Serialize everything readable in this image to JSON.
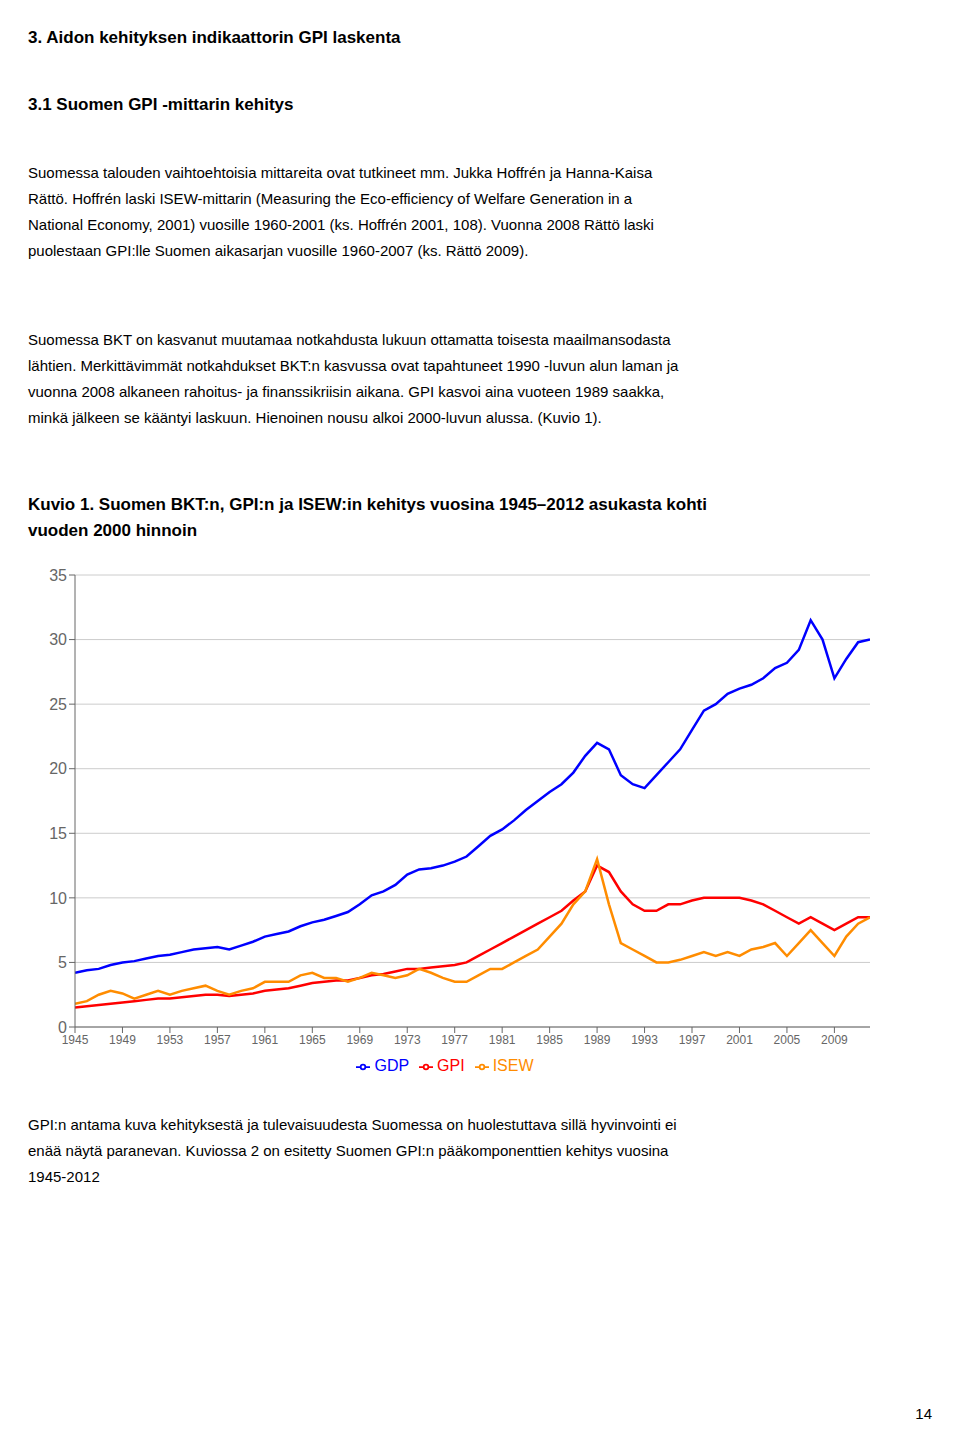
{
  "chart_data": {
    "type": "line",
    "title": "3. Aidon kehityksen indikaattorin GPI laskenta",
    "subtitle": "3.1 Suomen GPI -mittarin kehitys",
    "annotations": [
      [
        "Suomessa talouden vaihtoehtoisia mittareita ovat tutkineet mm. Jukka Hoffrén ja Hanna-Kaisa",
        "Rättö. Hoffrén laski ISEW-mittarin (Measuring the Eco-efficiency of Welfare Generation in a",
        "National Economy, 2001) vuosille 1960-2001 (ks. Hoffrén 2001, 108). Vuonna 2008 Rättö laski",
        "puolestaan GPI:lle Suomen aikasarjan vuosille 1960-2007 (ks. Rättö 2009)."
      ],
      [
        "Suomessa BKT on kasvanut muutamaa notkahdusta lukuun ottamatta toisesta maailmansodasta",
        "lähtien. Merkittävimmät notkahdukset BKT:n kasvussa ovat tapahtuneet 1990 -luvun alun laman ja",
        "vuonna 2008 alkaneen rahoitus- ja finanssikriisin aikana. GPI kasvoi aina vuoteen 1989 saakka,",
        "minkä jälkeen se kääntyi laskuun. Hienoinen nousu alkoi 2000-luvun alussa. (Kuvio 1)."
      ],
      [
        "Kuvio 1. Suomen BKT:n, GPI:n ja ISEW:in kehitys vuosina 1945–2012 asukasta kohti",
        "vuoden 2000 hinnoin"
      ],
      [
        "GPI:n antama kuva kehityksestä ja tulevaisuudesta Suomessa on huolestuttava sillä hyvinvointi ei",
        "enää näytä paranevan. Kuviossa 2 on esitetty Suomen GPI:n pääkomponenttien kehitys vuosina",
        "1945-2012"
      ],
      [
        "14"
      ]
    ],
    "x": [
      1945,
      1946,
      1947,
      1948,
      1949,
      1950,
      1951,
      1952,
      1953,
      1954,
      1955,
      1956,
      1957,
      1958,
      1959,
      1960,
      1961,
      1962,
      1963,
      1964,
      1965,
      1966,
      1967,
      1968,
      1969,
      1970,
      1971,
      1972,
      1973,
      1974,
      1975,
      1976,
      1977,
      1978,
      1979,
      1980,
      1981,
      1982,
      1983,
      1984,
      1985,
      1986,
      1987,
      1988,
      1989,
      1990,
      1991,
      1992,
      1993,
      1994,
      1995,
      1996,
      1997,
      1998,
      1999,
      2000,
      2001,
      2002,
      2003,
      2004,
      2005,
      2006,
      2007,
      2008,
      2009,
      2010,
      2011,
      2012
    ],
    "series": [
      {
        "name": "GDP",
        "color": "#0000FF",
        "values": [
          4.2,
          4.4,
          4.5,
          4.8,
          5.0,
          5.1,
          5.3,
          5.5,
          5.6,
          5.8,
          6.0,
          6.1,
          6.2,
          6.0,
          6.3,
          6.6,
          7.0,
          7.2,
          7.4,
          7.8,
          8.1,
          8.3,
          8.6,
          8.9,
          9.5,
          10.2,
          10.5,
          11.0,
          11.8,
          12.2,
          12.3,
          12.5,
          12.8,
          13.2,
          14.0,
          14.8,
          15.3,
          16.0,
          16.8,
          17.5,
          18.2,
          18.8,
          19.7,
          21.0,
          22.0,
          21.5,
          19.5,
          18.8,
          18.5,
          19.5,
          20.5,
          21.5,
          23.0,
          24.5,
          25.0,
          25.8,
          26.2,
          26.5,
          27.0,
          27.8,
          28.2,
          29.2,
          31.5,
          30.0,
          27.0,
          28.5,
          29.8,
          30.0
        ]
      },
      {
        "name": "GPI",
        "color": "#FF0000",
        "values": [
          1.5,
          1.6,
          1.7,
          1.8,
          1.9,
          2.0,
          2.1,
          2.2,
          2.2,
          2.3,
          2.4,
          2.5,
          2.5,
          2.4,
          2.5,
          2.6,
          2.8,
          2.9,
          3.0,
          3.2,
          3.4,
          3.5,
          3.6,
          3.6,
          3.8,
          4.0,
          4.1,
          4.3,
          4.5,
          4.5,
          4.6,
          4.7,
          4.8,
          5.0,
          5.5,
          6.0,
          6.5,
          7.0,
          7.5,
          8.0,
          8.5,
          9.0,
          9.8,
          10.5,
          12.5,
          12.0,
          10.5,
          9.5,
          9.0,
          9.0,
          9.5,
          9.5,
          9.8,
          10.0,
          10.0,
          10.0,
          10.0,
          9.8,
          9.5,
          9.0,
          8.5,
          8.0,
          8.5,
          8.0,
          7.5,
          8.0,
          8.5,
          8.5
        ]
      },
      {
        "name": "ISEW",
        "color": "#FF8C00",
        "values": [
          1.8,
          2.0,
          2.5,
          2.8,
          2.6,
          2.2,
          2.5,
          2.8,
          2.5,
          2.8,
          3.0,
          3.2,
          2.8,
          2.5,
          2.8,
          3.0,
          3.5,
          3.5,
          3.5,
          4.0,
          4.2,
          3.8,
          3.8,
          3.5,
          3.8,
          4.2,
          4.0,
          3.8,
          4.0,
          4.5,
          4.2,
          3.8,
          3.5,
          3.5,
          4.0,
          4.5,
          4.5,
          5.0,
          5.5,
          6.0,
          7.0,
          8.0,
          9.5,
          10.5,
          13.0,
          9.5,
          6.5,
          6.0,
          5.5,
          5.0,
          5.0,
          5.2,
          5.5,
          5.8,
          5.5,
          5.8,
          5.5,
          6.0,
          6.2,
          6.5,
          5.5,
          6.5,
          7.5,
          6.5,
          5.5,
          7.0,
          8.0,
          8.5
        ]
      }
    ],
    "xlim": [
      1945,
      2012
    ],
    "xticks": [
      1945,
      1949,
      1953,
      1957,
      1961,
      1965,
      1969,
      1973,
      1977,
      1981,
      1985,
      1989,
      1993,
      1997,
      2001,
      2005,
      2009
    ],
    "ylim": [
      0,
      35
    ],
    "yticks": [
      0,
      5,
      10,
      15,
      20,
      25,
      30,
      35
    ],
    "grid": true,
    "legend": "bottom"
  }
}
